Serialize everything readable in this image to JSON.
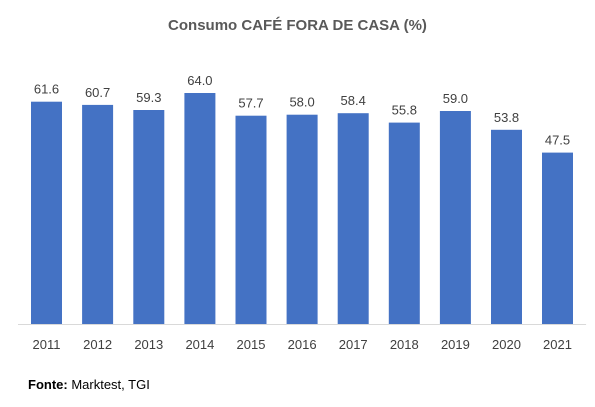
{
  "chart_data": {
    "type": "bar",
    "title": "Consumo CAFÉ FORA DE CASA (%)",
    "categories": [
      "2011",
      "2012",
      "2013",
      "2014",
      "2015",
      "2016",
      "2017",
      "2018",
      "2019",
      "2020",
      "2021"
    ],
    "values": [
      61.6,
      60.7,
      59.3,
      64.0,
      57.7,
      58.0,
      58.4,
      55.8,
      59.0,
      53.8,
      47.5
    ],
    "value_labels": [
      "61.6",
      "60.7",
      "59.3",
      "64.0",
      "57.7",
      "58.0",
      "58.4",
      "55.8",
      "59.0",
      "53.8",
      "47.5"
    ],
    "xlabel": "",
    "ylabel": "",
    "ylim": [
      0,
      64
    ],
    "grid": false,
    "bar_color": "#4472C4"
  },
  "source": {
    "label": "Fonte:",
    "text": " Marktest, TGI"
  }
}
